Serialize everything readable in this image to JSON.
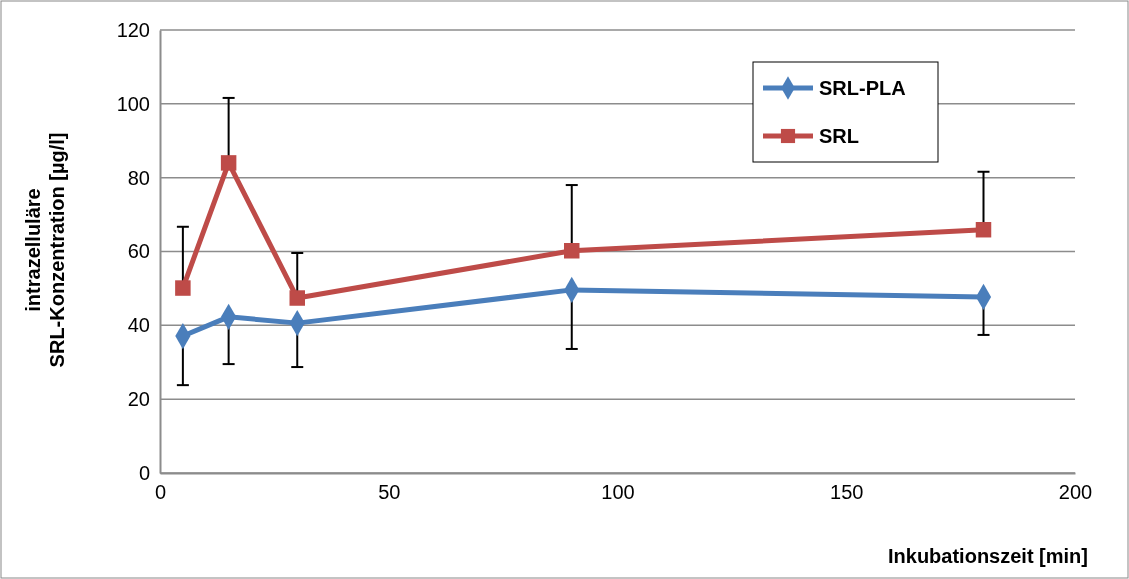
{
  "chart_data": {
    "type": "line",
    "xlabel": "Inkubationszeit [min]",
    "ylabel": "intrazelluläre SRL-Konzentration [µg/l]",
    "x": [
      5,
      15,
      30,
      90,
      180
    ],
    "series": [
      {
        "name": "SRL-PLA",
        "color": "#4a7ebb",
        "marker": "diamond",
        "values": [
          37.1,
          42.3,
          40.6,
          49.6,
          47.7
        ],
        "errors": [
          [
            23.8,
            37.1
          ],
          [
            29.5,
            42.3
          ],
          [
            28.7,
            40.6
          ],
          [
            33.6,
            49.6
          ],
          [
            37.4,
            47.7
          ]
        ]
      },
      {
        "name": "SRL",
        "color": "#be4b48",
        "marker": "square",
        "values": [
          50.1,
          84,
          47.4,
          60.2,
          65.9
        ],
        "errors": [
          [
            50.1,
            66.7
          ],
          [
            84,
            101.6
          ],
          [
            47.4,
            59.6
          ],
          [
            60.2,
            78
          ],
          [
            65.9,
            81.6
          ]
        ]
      }
    ],
    "xlim": [
      0,
      200
    ],
    "xticks": [
      0,
      50,
      100,
      150,
      200
    ],
    "ylim": [
      0,
      120
    ],
    "yticks": [
      0,
      20,
      40,
      60,
      80,
      100,
      120
    ],
    "grid": "y",
    "legend": "top right",
    "line_style": "solid"
  }
}
